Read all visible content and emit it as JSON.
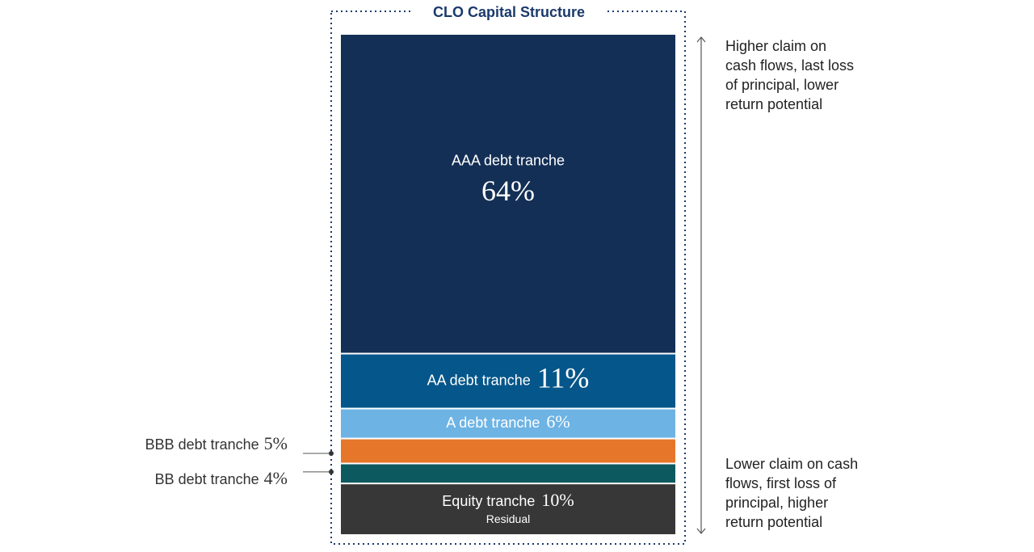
{
  "chart_data": {
    "type": "stacked-bar",
    "title": "CLO Capital Structure",
    "categories": [
      "AAA debt tranche",
      "AA debt tranche",
      "A debt tranche",
      "BBB debt tranche",
      "BB debt tranche",
      "Equity tranche"
    ],
    "values": [
      64,
      11,
      6,
      5,
      4,
      10
    ],
    "value_labels": [
      "64%",
      "11%",
      "6%",
      "5%",
      "4%",
      "10%"
    ],
    "colors": [
      "#132f55",
      "#05568a",
      "#6db3e4",
      "#e6772a",
      "#0c5a5f",
      "#373737"
    ],
    "equity_note": "Residual",
    "annotations": {
      "top": [
        "Higher claim on",
        "cash flows, last loss",
        "of principal, lower",
        "return potential"
      ],
      "bottom": [
        "Lower claim on cash",
        "flows, first loss of",
        "principal, higher",
        "return potential"
      ]
    }
  }
}
